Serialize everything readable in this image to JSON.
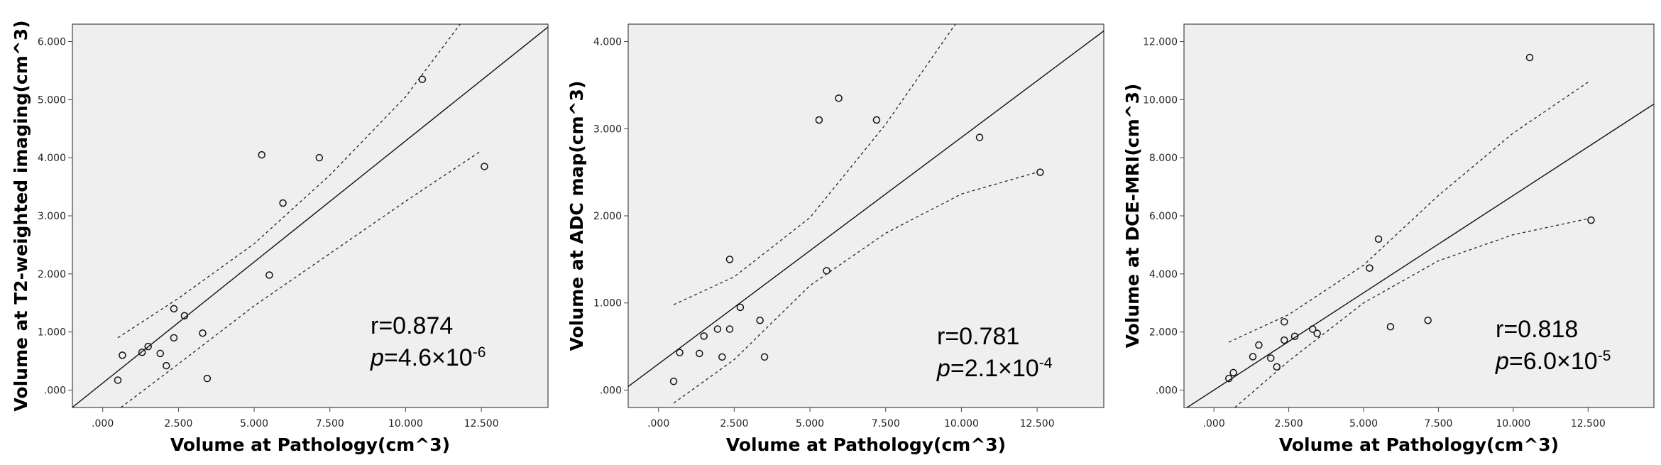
{
  "chart_data": [
    {
      "type": "scatter",
      "xlabel": "Volume at Pathology(cm^3)",
      "ylabel": "Volume at T2-weighted imaging(cm^3)",
      "xticks": [
        ".000",
        "2.500",
        "5.000",
        "7.500",
        "10.000",
        "12.500"
      ],
      "yticks": [
        ".000",
        "1.000",
        "2.000",
        "3.000",
        "4.000",
        "5.000",
        "6.000"
      ],
      "xlim": [
        -1.0,
        14.7
      ],
      "ylim": [
        -0.3,
        6.3
      ],
      "stats": {
        "r": "r=0.874",
        "p_symbol": "p",
        "p_value": "=4.6×10",
        "p_exp": "-6"
      },
      "fit": {
        "slope": 0.417,
        "intercept": 0.12
      },
      "ci_band": {
        "upper": [
          [
            0.5,
            0.9
          ],
          [
            2.5,
            1.58
          ],
          [
            5.0,
            2.52
          ],
          [
            7.5,
            3.7
          ],
          [
            10.0,
            5.05
          ],
          [
            11.8,
            6.3
          ]
        ],
        "lower": [
          [
            0.6,
            -0.3
          ],
          [
            2.5,
            0.45
          ],
          [
            5.0,
            1.45
          ],
          [
            7.5,
            2.35
          ],
          [
            10.0,
            3.25
          ],
          [
            12.5,
            4.12
          ]
        ]
      },
      "points": [
        [
          0.5,
          0.17
        ],
        [
          0.65,
          0.6
        ],
        [
          1.3,
          0.65
        ],
        [
          1.5,
          0.75
        ],
        [
          1.9,
          0.63
        ],
        [
          2.1,
          0.42
        ],
        [
          2.35,
          0.9
        ],
        [
          2.35,
          1.4
        ],
        [
          2.7,
          1.28
        ],
        [
          3.3,
          0.98
        ],
        [
          3.45,
          0.2
        ],
        [
          5.25,
          4.05
        ],
        [
          5.5,
          1.98
        ],
        [
          5.95,
          3.22
        ],
        [
          7.15,
          4.0
        ],
        [
          10.55,
          5.35
        ],
        [
          12.6,
          3.85
        ]
      ]
    },
    {
      "type": "scatter",
      "xlabel": "Volume at Pathology(cm^3)",
      "ylabel": "Volume at ADC map(cm^3)",
      "xticks": [
        ".000",
        "2.500",
        "5.000",
        "7.500",
        "10.000",
        "12.500"
      ],
      "yticks": [
        ".000",
        "1.000",
        "2.000",
        "3.000",
        "4.000"
      ],
      "xlim": [
        -1.0,
        14.7
      ],
      "ylim": [
        -0.2,
        4.2
      ],
      "stats": {
        "r": "r=0.781",
        "p_symbol": "p",
        "p_value": "=2.1×10",
        "p_exp": "-4"
      },
      "fit": {
        "slope": 0.26,
        "intercept": 0.3
      },
      "ci_band": {
        "upper": [
          [
            0.5,
            0.98
          ],
          [
            2.5,
            1.3
          ],
          [
            5.0,
            1.98
          ],
          [
            7.5,
            3.05
          ],
          [
            9.8,
            4.2
          ]
        ],
        "lower": [
          [
            0.5,
            -0.15
          ],
          [
            2.5,
            0.35
          ],
          [
            5.0,
            1.2
          ],
          [
            7.5,
            1.8
          ],
          [
            10.0,
            2.25
          ],
          [
            12.5,
            2.5
          ]
        ]
      },
      "points": [
        [
          0.5,
          0.1
        ],
        [
          0.7,
          0.43
        ],
        [
          1.35,
          0.42
        ],
        [
          1.5,
          0.62
        ],
        [
          1.95,
          0.7
        ],
        [
          2.1,
          0.38
        ],
        [
          2.35,
          1.5
        ],
        [
          2.35,
          0.7
        ],
        [
          2.7,
          0.95
        ],
        [
          3.35,
          0.8
        ],
        [
          3.5,
          0.38
        ],
        [
          5.3,
          3.1
        ],
        [
          5.55,
          1.37
        ],
        [
          5.95,
          3.35
        ],
        [
          7.2,
          3.1
        ],
        [
          10.6,
          2.9
        ],
        [
          12.6,
          2.5
        ]
      ]
    },
    {
      "type": "scatter",
      "xlabel": "Volume at Pathology(cm^3)",
      "ylabel": "Volume at DCE-MRI(cm^3)",
      "xticks": [
        ".000",
        "2.500",
        "5.000",
        "7.500",
        "10.000",
        "12.500"
      ],
      "yticks": [
        ".000",
        "2.000",
        "4.000",
        "6.000",
        "8.000",
        "10.000",
        "12.000"
      ],
      "xlim": [
        -1.0,
        14.7
      ],
      "ylim": [
        -0.6,
        12.6
      ],
      "stats": {
        "r": "r=0.818",
        "p_symbol": "p",
        "p_value": "=6.0×10",
        "p_exp": "-5"
      },
      "fit": {
        "slope": 0.67,
        "intercept": 0.0
      },
      "ci_band": {
        "upper": [
          [
            0.5,
            1.65
          ],
          [
            2.5,
            2.6
          ],
          [
            5.0,
            4.3
          ],
          [
            7.5,
            6.7
          ],
          [
            10.0,
            8.85
          ],
          [
            12.5,
            10.6
          ]
        ],
        "lower": [
          [
            0.7,
            -0.6
          ],
          [
            2.5,
            1.0
          ],
          [
            5.0,
            3.0
          ],
          [
            7.5,
            4.45
          ],
          [
            10.0,
            5.35
          ],
          [
            12.5,
            5.9
          ]
        ]
      },
      "points": [
        [
          0.5,
          0.4
        ],
        [
          0.65,
          0.6
        ],
        [
          1.3,
          1.15
        ],
        [
          1.5,
          1.55
        ],
        [
          1.9,
          1.1
        ],
        [
          2.1,
          0.8
        ],
        [
          2.35,
          2.35
        ],
        [
          2.35,
          1.72
        ],
        [
          2.7,
          1.85
        ],
        [
          3.3,
          2.1
        ],
        [
          3.45,
          1.95
        ],
        [
          5.2,
          4.2
        ],
        [
          5.5,
          5.2
        ],
        [
          5.9,
          2.18
        ],
        [
          7.15,
          2.4
        ],
        [
          10.55,
          11.45
        ],
        [
          12.6,
          5.85
        ]
      ]
    }
  ]
}
